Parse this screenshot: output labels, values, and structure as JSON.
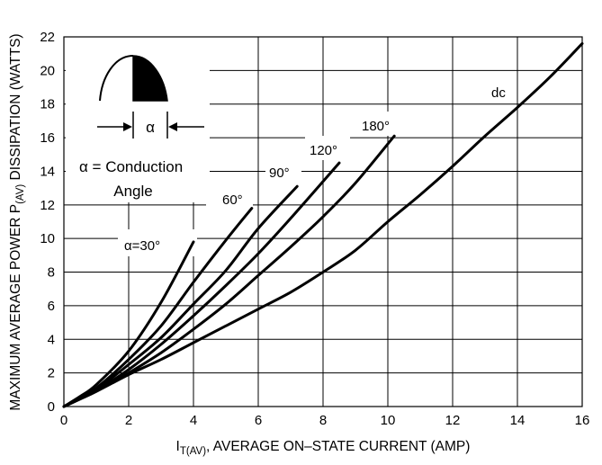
{
  "chart_data": {
    "type": "line",
    "xlabel_main": "I",
    "xlabel_sub": "T(AV)",
    "xlabel_rest": ", AVERAGE ON–STATE CURRENT (AMP)",
    "ylabel_main": "MAXIMUM AVERAGE POWER P",
    "ylabel_sub": "(AV)",
    "ylabel_rest": " DISSIPATION (WATTS)",
    "xlim": [
      0,
      16
    ],
    "ylim": [
      0,
      22
    ],
    "x_ticks": [
      "0",
      "2",
      "4",
      "6",
      "8",
      "10",
      "12",
      "14",
      "16"
    ],
    "y_ticks": [
      "0",
      "2",
      "4",
      "6",
      "8",
      "10",
      "12",
      "14",
      "16",
      "18",
      "20",
      "22"
    ],
    "grid": true,
    "series": [
      {
        "name": "α=30°",
        "points": [
          [
            0,
            0
          ],
          [
            0.5,
            0.6
          ],
          [
            1,
            1.3
          ],
          [
            2,
            3.3
          ],
          [
            3,
            6.2
          ],
          [
            4,
            9.8
          ]
        ]
      },
      {
        "name": "60°",
        "points": [
          [
            0,
            0
          ],
          [
            0.5,
            0.5
          ],
          [
            1,
            1.1
          ],
          [
            2,
            2.8
          ],
          [
            3,
            4.8
          ],
          [
            4,
            7.4
          ],
          [
            5,
            9.9
          ],
          [
            5.8,
            11.8
          ]
        ]
      },
      {
        "name": "90°",
        "points": [
          [
            0,
            0
          ],
          [
            0.5,
            0.5
          ],
          [
            1,
            1.0
          ],
          [
            2,
            2.5
          ],
          [
            3,
            4.1
          ],
          [
            4,
            6.1
          ],
          [
            5,
            8.1
          ],
          [
            6,
            10.6
          ],
          [
            7.2,
            13.1
          ]
        ]
      },
      {
        "name": "120°",
        "points": [
          [
            0,
            0
          ],
          [
            0.5,
            0.5
          ],
          [
            1,
            0.95
          ],
          [
            2,
            2.2
          ],
          [
            3,
            3.7
          ],
          [
            4,
            5.4
          ],
          [
            5,
            7.2
          ],
          [
            6,
            9.1
          ],
          [
            7,
            11.2
          ],
          [
            8.5,
            14.5
          ]
        ]
      },
      {
        "name": "180°",
        "points": [
          [
            0,
            0
          ],
          [
            0.5,
            0.45
          ],
          [
            1,
            0.9
          ],
          [
            2,
            2.0
          ],
          [
            3,
            3.2
          ],
          [
            4,
            4.6
          ],
          [
            5,
            6.1
          ],
          [
            6,
            7.8
          ],
          [
            7,
            9.5
          ],
          [
            8,
            11.3
          ],
          [
            9,
            13.3
          ],
          [
            10.2,
            16.1
          ]
        ]
      },
      {
        "name": "dc",
        "points": [
          [
            0,
            0
          ],
          [
            1,
            0.9
          ],
          [
            2,
            1.9
          ],
          [
            3,
            2.8
          ],
          [
            4,
            3.8
          ],
          [
            5,
            4.8
          ],
          [
            6,
            5.8
          ],
          [
            7,
            6.8
          ],
          [
            8,
            8.0
          ],
          [
            9,
            9.3
          ],
          [
            10,
            11.0
          ],
          [
            11,
            12.6
          ],
          [
            12,
            14.3
          ],
          [
            13,
            16.1
          ],
          [
            14,
            17.8
          ],
          [
            15,
            19.6
          ],
          [
            16,
            21.6
          ]
        ]
      }
    ],
    "curve_labels": [
      "α=30°",
      "60°",
      "90°",
      "120°",
      "180°",
      "dc"
    ],
    "inset": {
      "alpha_symbol": "α",
      "legend_line1": "α = Conduction",
      "legend_line2": "Angle"
    }
  }
}
